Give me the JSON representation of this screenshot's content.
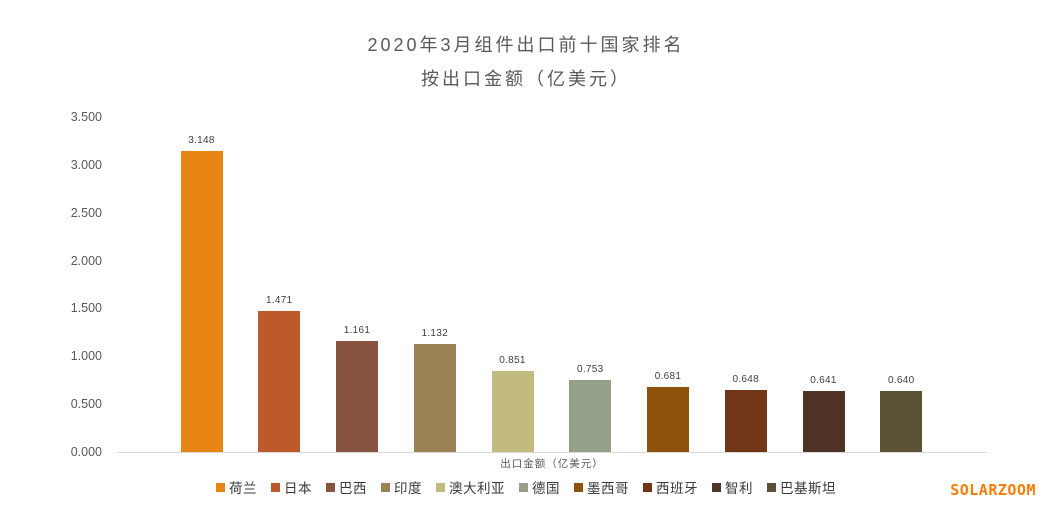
{
  "title": {
    "line1": "2020年3月组件出口前十国家排名",
    "line2": "按出口金额（亿美元）"
  },
  "watermark": "SOLARZOOM",
  "colors": {
    "title_text": "#595959",
    "axis_text": "#595959",
    "data_label_text": "#404040",
    "legend_text": "#3a3a3a",
    "axis_line": "#d9d9d9",
    "watermark_orange": "#ff7c00"
  },
  "chart_data": {
    "type": "bar",
    "title": "2020年3月组件出口前十国家排名 按出口金额（亿美元）",
    "categories": [
      "荷兰",
      "日本",
      "巴西",
      "印度",
      "澳大利亚",
      "德国",
      "墨西哥",
      "西班牙",
      "智利",
      "巴基斯坦"
    ],
    "values": [
      3.148,
      1.471,
      1.161,
      1.132,
      0.851,
      0.753,
      0.681,
      0.648,
      0.641,
      0.64
    ],
    "value_labels": [
      "3.148",
      "1.471",
      "1.161",
      "1.132",
      "0.851",
      "0.753",
      "0.681",
      "0.648",
      "0.641",
      "0.640"
    ],
    "bar_colors": [
      "#E88514",
      "#BD5A2B",
      "#875440",
      "#9B8256",
      "#C2BB80",
      "#94A088",
      "#8C520C",
      "#713518",
      "#4F3327",
      "#5B5134"
    ],
    "xlabel": "出口金额（亿美元）",
    "ylabel": "",
    "ylim": [
      0,
      3.5
    ],
    "ytick_step": 0.5,
    "yticks": [
      "0.000",
      "0.500",
      "1.000",
      "1.500",
      "2.000",
      "2.500",
      "3.000",
      "3.500"
    ],
    "grid": false,
    "legend_position": "bottom"
  }
}
